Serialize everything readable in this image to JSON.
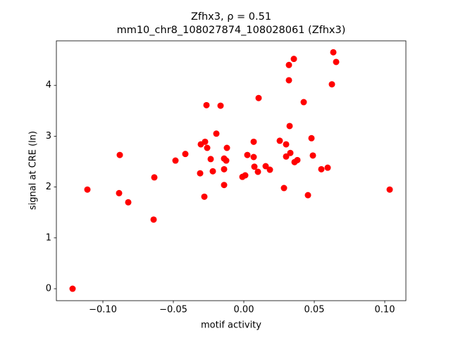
{
  "chart_data": {
    "type": "scatter",
    "title": "Zfhx3, ρ = 0.51",
    "subtitle": "mm10_chr8_108027874_108028061 (Zfhx3)",
    "x_label": "motif activity",
    "y_label": "signal at CRE (ln)",
    "color": "#ff0000",
    "x": [
      -0.1215,
      -0.111,
      -0.088,
      -0.0885,
      -0.082,
      -0.064,
      -0.0635,
      -0.0485,
      -0.0415,
      -0.0265,
      -0.0165,
      -0.0195,
      -0.031,
      -0.0305,
      -0.0275,
      -0.026,
      -0.028,
      -0.0235,
      -0.022,
      -0.014,
      -0.014,
      -0.014,
      -0.0125,
      -0.012,
      -0.001,
      0.001,
      0.0025,
      0.007,
      0.007,
      0.0075,
      0.01,
      0.0105,
      0.0155,
      0.0185,
      0.0255,
      0.0285,
      0.03,
      0.03,
      0.032,
      0.032,
      0.0325,
      0.033,
      0.0355,
      0.036,
      0.038,
      0.0425,
      0.0455,
      0.048,
      0.049,
      0.055,
      0.0595,
      0.0635,
      0.0625,
      0.0655,
      0.1035
    ],
    "y": [
      0,
      1.95,
      2.63,
      1.88,
      1.7,
      1.36,
      2.19,
      2.52,
      2.65,
      3.61,
      3.6,
      3.05,
      2.27,
      2.84,
      2.89,
      2.77,
      1.81,
      2.55,
      2.31,
      2.04,
      2.35,
      2.56,
      2.52,
      2.77,
      2.2,
      2.23,
      2.63,
      2.89,
      2.59,
      2.4,
      2.3,
      3.75,
      2.41,
      2.34,
      2.91,
      1.98,
      2.84,
      2.6,
      4.4,
      4.1,
      3.2,
      2.67,
      4.52,
      2.49,
      2.53,
      3.67,
      1.84,
      2.96,
      2.62,
      2.35,
      2.38,
      4.65,
      4.02,
      4.46,
      1.95
    ],
    "xlim": [
      -0.133,
      0.115
    ],
    "ylim": [
      -0.235,
      4.875
    ],
    "xticks": [
      {
        "value": -0.1,
        "label": "−0.10"
      },
      {
        "value": -0.05,
        "label": "−0.05"
      },
      {
        "value": 0,
        "label": "0.00"
      },
      {
        "value": 0.05,
        "label": "0.05"
      },
      {
        "value": 0.1,
        "label": "0.10"
      }
    ],
    "yticks": [
      0,
      1,
      2,
      3,
      4
    ],
    "grid": false
  }
}
